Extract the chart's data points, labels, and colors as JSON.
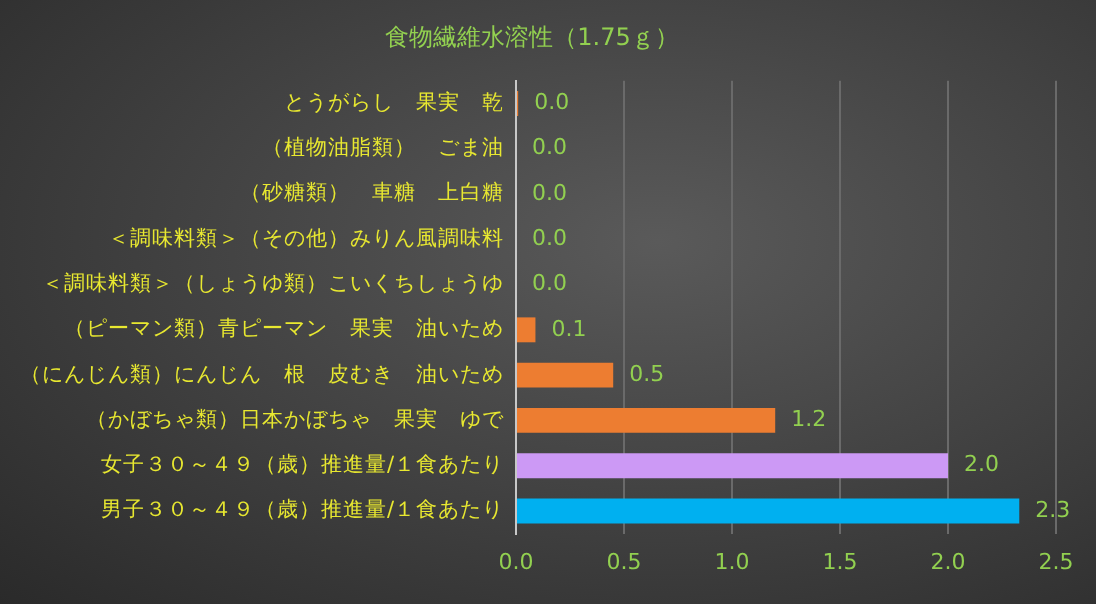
{
  "chart_data": {
    "type": "bar",
    "orientation": "horizontal",
    "title": "食物繊維水溶性（1.75ｇ）",
    "categories": [
      "とうがらし　果実　乾",
      "（植物油脂類）　ごま油",
      "（砂糖類）　車糖　上白糖",
      "＜調味料類＞（その他）みりん風調味料",
      "＜調味料類＞（しょうゆ類）こいくちしょうゆ",
      "（ピーマン類）青ピーマン　果実　油いため",
      "（にんじん類）にんじん　根　皮むき　油いため",
      "（かぼちゃ類）日本かぼちゃ　果実　ゆで",
      "女子３０～４９（歳）推進量/１食あたり",
      "男子３０～４９（歳）推進量/１食あたり"
    ],
    "values": [
      0.01,
      0,
      0,
      0,
      0,
      0.09,
      0.45,
      1.2,
      2.0,
      2.33
    ],
    "value_labels": [
      "0.0",
      "0.0",
      "0.0",
      "0.0",
      "0.0",
      "0.1",
      "0.5",
      "1.2",
      "2.0",
      "2.3"
    ],
    "colors": [
      "#ed7d31",
      "#ed7d31",
      "#ed7d31",
      "#ed7d31",
      "#ed7d31",
      "#ed7d31",
      "#ed7d31",
      "#ed7d31",
      "#cc99f5",
      "#00b0f0"
    ],
    "xlim": [
      0,
      2.5
    ],
    "xticks": [
      {
        "value": 0,
        "label": "0.0"
      },
      0.5,
      {
        "value": 1,
        "label": "1.0"
      },
      1.5,
      {
        "value": 2,
        "label": "2.0"
      },
      2.5
    ],
    "grid": "x"
  }
}
